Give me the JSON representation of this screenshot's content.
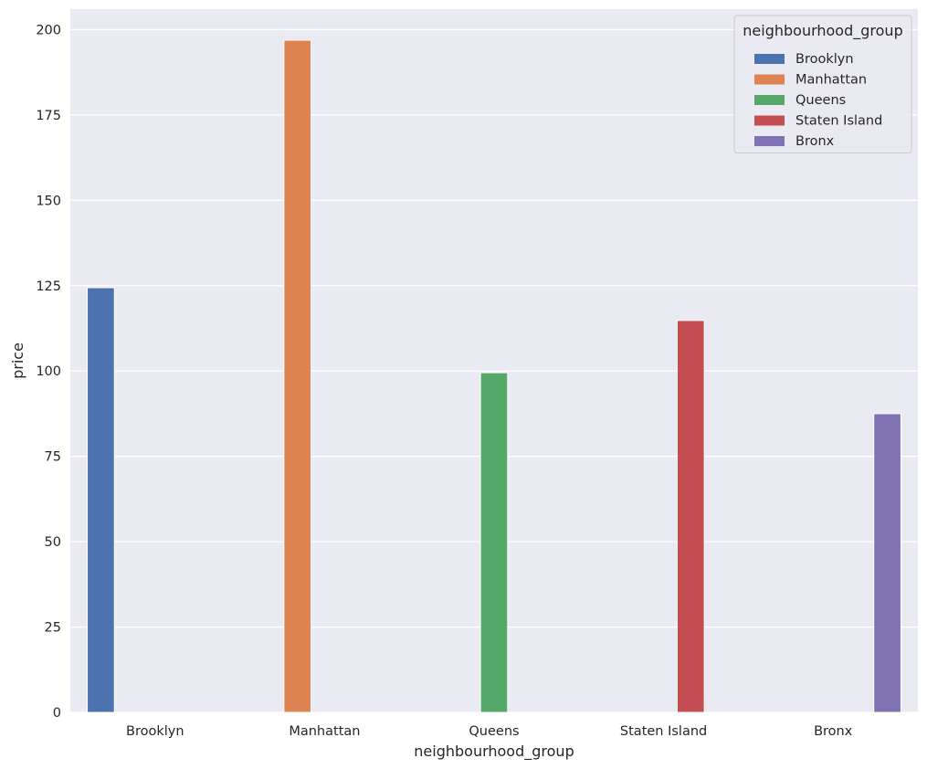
{
  "chart_data": {
    "type": "bar",
    "xlabel": "neighbourhood_group",
    "ylabel": "price",
    "categories": [
      "Brooklyn",
      "Manhattan",
      "Queens",
      "Staten Island",
      "Bronx"
    ],
    "hue": "neighbourhood_group",
    "series": [
      {
        "name": "Brooklyn",
        "color": "#4c72b0",
        "values": [
          124.4,
          null,
          null,
          null,
          null
        ]
      },
      {
        "name": "Manhattan",
        "color": "#dd8452",
        "values": [
          null,
          196.9,
          null,
          null,
          null
        ]
      },
      {
        "name": "Queens",
        "color": "#55a868",
        "values": [
          null,
          null,
          99.5,
          null,
          null
        ]
      },
      {
        "name": "Staten Island",
        "color": "#c44e52",
        "values": [
          null,
          null,
          null,
          114.8,
          null
        ]
      },
      {
        "name": "Bronx",
        "color": "#8172b3",
        "values": [
          null,
          null,
          null,
          null,
          87.5
        ]
      }
    ],
    "yticks": [
      0,
      25,
      50,
      75,
      100,
      125,
      150,
      175,
      200
    ],
    "ylim": [
      0,
      206
    ],
    "grid": true,
    "legend": {
      "title": "neighbourhood_group",
      "position": "top-right"
    },
    "colors": {
      "background": "#eaeaf2",
      "grid": "#ffffff"
    }
  }
}
